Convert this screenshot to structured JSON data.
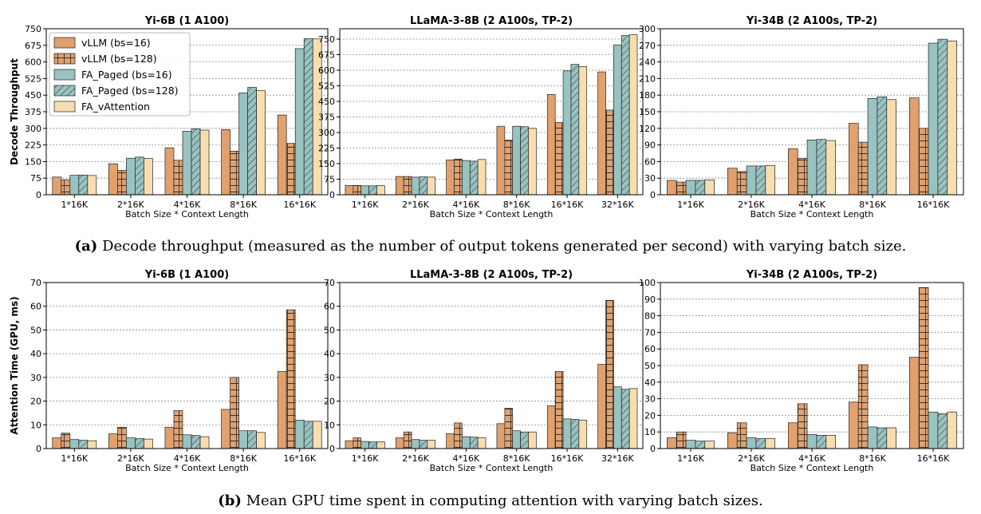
{
  "legend": {
    "entries": [
      {
        "label": "vLLM (bs=16)",
        "color": "#e0a16f",
        "pattern": "none"
      },
      {
        "label": "vLLM (bs=128)",
        "color": "#e0a16f",
        "pattern": "grid"
      },
      {
        "label": "FA_Paged (bs=16)",
        "color": "#98c3c1",
        "pattern": "none"
      },
      {
        "label": "FA_Paged (bs=128)",
        "color": "#98c3c1",
        "pattern": "diag"
      },
      {
        "label": "FA_vAttention",
        "color": "#f7ddb0",
        "pattern": "none"
      }
    ]
  },
  "captions": {
    "a_label": "(a)",
    "a_text": "Decode throughput (measured as the number of output tokens generated per second) with varying batch size.",
    "b_label": "(b)",
    "b_text": "Mean GPU time spent in computing attention with varying batch sizes."
  },
  "chart_data": [
    {
      "type": "bar",
      "title": "Yi-6B (1 A100)",
      "xlabel": "Batch Size * Context Length",
      "ylabel": "Decode Throughput",
      "categories": [
        "1*16K",
        "2*16K",
        "4*16K",
        "8*16K",
        "16*16K"
      ],
      "ylim": [
        0,
        750
      ],
      "yticks": [
        0,
        75,
        150,
        225,
        300,
        375,
        450,
        525,
        600,
        675,
        750
      ],
      "series": [
        {
          "name": "vLLM (bs=16)",
          "values": [
            80,
            140,
            212,
            294,
            360
          ]
        },
        {
          "name": "vLLM (bs=128)",
          "values": [
            68,
            110,
            156,
            197,
            232
          ]
        },
        {
          "name": "FA_Paged (bs=16)",
          "values": [
            88,
            165,
            287,
            460,
            660
          ]
        },
        {
          "name": "FA_Paged (bs=128)",
          "values": [
            89,
            170,
            298,
            485,
            705
          ]
        },
        {
          "name": "FA_vAttention",
          "values": [
            87,
            164,
            292,
            470,
            704
          ]
        }
      ]
    },
    {
      "type": "bar",
      "title": "LLaMA-3-8B (2 A100s, TP-2)",
      "xlabel": "Batch Size * Context Length",
      "ylabel": "",
      "categories": [
        "1*16K",
        "2*16K",
        "4*16K",
        "8*16K",
        "16*16K",
        "32*16K"
      ],
      "ylim": [
        0,
        800
      ],
      "yticks": [
        0,
        75,
        150,
        225,
        300,
        375,
        450,
        525,
        600,
        675,
        750
      ],
      "series": [
        {
          "name": "vLLM (bs=16)",
          "values": [
            45,
            88,
            168,
            330,
            483,
            592
          ]
        },
        {
          "name": "vLLM (bs=128)",
          "values": [
            45,
            88,
            172,
            263,
            348,
            408
          ]
        },
        {
          "name": "FA_Paged (bs=16)",
          "values": [
            43,
            85,
            165,
            330,
            597,
            722
          ]
        },
        {
          "name": "FA_Paged (bs=128)",
          "values": [
            43,
            86,
            162,
            328,
            628,
            767
          ]
        },
        {
          "name": "FA_vAttention",
          "values": [
            44,
            85,
            170,
            320,
            618,
            771
          ]
        }
      ]
    },
    {
      "type": "bar",
      "title": "Yi-34B (2 A100s, TP-2)",
      "xlabel": "Batch Size * Context Length",
      "ylabel": "",
      "categories": [
        "1*16K",
        "2*16K",
        "4*16K",
        "8*16K",
        "16*16K"
      ],
      "ylim": [
        0,
        300
      ],
      "yticks": [
        0,
        30,
        60,
        90,
        120,
        150,
        180,
        210,
        240,
        270,
        300
      ],
      "series": [
        {
          "name": "vLLM (bs=16)",
          "values": [
            26,
            48,
            83,
            129,
            175
          ]
        },
        {
          "name": "vLLM (bs=128)",
          "values": [
            23,
            42,
            66,
            95,
            120
          ]
        },
        {
          "name": "FA_Paged (bs=16)",
          "values": [
            26,
            52,
            99,
            174,
            274
          ]
        },
        {
          "name": "FA_Paged (bs=128)",
          "values": [
            26,
            52,
            100,
            177,
            281
          ]
        },
        {
          "name": "FA_vAttention",
          "values": [
            27,
            53,
            98,
            172,
            278
          ]
        }
      ]
    },
    {
      "type": "bar",
      "title": "Yi-6B (1 A100)",
      "xlabel": "Batch Size * Context Length",
      "ylabel": "Attention Time (GPU, ms)",
      "categories": [
        "1*16K",
        "2*16K",
        "4*16K",
        "8*16K",
        "16*16K"
      ],
      "ylim": [
        0,
        70
      ],
      "yticks": [
        0,
        10,
        20,
        30,
        40,
        50,
        60,
        70
      ],
      "series": [
        {
          "name": "vLLM (bs=16)",
          "values": [
            4.5,
            6.2,
            9.0,
            16.5,
            32.5
          ]
        },
        {
          "name": "vLLM (bs=128)",
          "values": [
            6.5,
            9.0,
            16.0,
            30.0,
            58.5
          ]
        },
        {
          "name": "FA_Paged (bs=16)",
          "values": [
            3.8,
            4.5,
            5.8,
            7.5,
            12.0
          ]
        },
        {
          "name": "FA_Paged (bs=128)",
          "values": [
            3.5,
            4.2,
            5.5,
            7.5,
            11.5
          ]
        },
        {
          "name": "FA_vAttention",
          "values": [
            3.3,
            4.0,
            5.0,
            6.8,
            11.5
          ]
        }
      ]
    },
    {
      "type": "bar",
      "title": "LLaMA-3-8B (2 A100s, TP-2)",
      "xlabel": "Batch Size * Context Length",
      "ylabel": "",
      "categories": [
        "1*16K",
        "2*16K",
        "4*16K",
        "8*16K",
        "16*16K",
        "32*16K"
      ],
      "ylim": [
        0,
        70
      ],
      "yticks": [
        0,
        10,
        20,
        30,
        40,
        50,
        60,
        70
      ],
      "series": [
        {
          "name": "vLLM (bs=16)",
          "values": [
            3.3,
            4.5,
            6.3,
            10.5,
            18.0,
            35.5
          ]
        },
        {
          "name": "vLLM (bs=128)",
          "values": [
            4.5,
            7.0,
            10.8,
            17.0,
            32.5,
            62.5
          ]
        },
        {
          "name": "FA_Paged (bs=16)",
          "values": [
            3.0,
            3.8,
            5.0,
            7.5,
            12.5,
            26.0
          ]
        },
        {
          "name": "FA_Paged (bs=128)",
          "values": [
            2.8,
            3.5,
            4.8,
            7.0,
            12.3,
            25.0
          ]
        },
        {
          "name": "FA_vAttention",
          "values": [
            2.8,
            3.5,
            4.5,
            7.0,
            12.0,
            25.3
          ]
        }
      ]
    },
    {
      "type": "bar",
      "title": "Yi-34B (2 A100s, TP-2)",
      "xlabel": "Batch Size * Context Length",
      "ylabel": "",
      "categories": [
        "1*16K",
        "2*16K",
        "4*16K",
        "8*16K",
        "16*16K"
      ],
      "ylim": [
        0,
        100
      ],
      "yticks": [
        0,
        10,
        20,
        30,
        40,
        50,
        60,
        70,
        80,
        90,
        100
      ],
      "series": [
        {
          "name": "vLLM (bs=16)",
          "values": [
            6.5,
            9.5,
            15.5,
            28.0,
            55.0
          ]
        },
        {
          "name": "vLLM (bs=128)",
          "values": [
            10.0,
            15.5,
            27.0,
            50.5,
            97.0
          ]
        },
        {
          "name": "FA_Paged (bs=16)",
          "values": [
            5.0,
            6.5,
            8.5,
            13.0,
            22.0
          ]
        },
        {
          "name": "FA_Paged (bs=128)",
          "values": [
            4.5,
            6.0,
            8.0,
            12.5,
            21.0
          ]
        },
        {
          "name": "FA_vAttention",
          "values": [
            4.5,
            6.0,
            8.0,
            12.5,
            22.0
          ]
        }
      ]
    }
  ]
}
